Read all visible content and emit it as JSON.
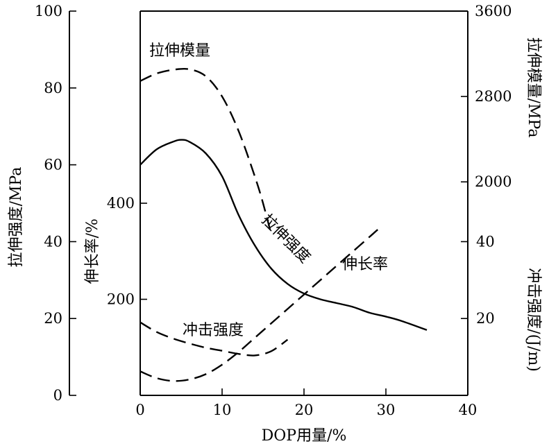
{
  "chart_data": {
    "type": "line",
    "title": "",
    "xlabel": "DOP用量/%",
    "x_ticks": [
      "0",
      "10",
      "20",
      "30",
      "40"
    ],
    "xlim": [
      0,
      40
    ],
    "axes": {
      "tensile_strength": {
        "label": "拉伸强度/MPa",
        "range": [
          0,
          100
        ],
        "ticks": [
          "0",
          "20",
          "40",
          "60",
          "80",
          "100"
        ]
      },
      "elongation": {
        "label": "伸长率/%",
        "range": [
          0,
          800
        ],
        "ticks": [
          "200",
          "400"
        ]
      },
      "tensile_modulus": {
        "label": "拉伸模量/MPa",
        "range": [
          0,
          3600
        ],
        "ticks": [
          "2000",
          "2800",
          "3600"
        ]
      },
      "impact_strength": {
        "label": "冲击强度/(J/m)",
        "range": [
          0,
          100
        ],
        "ticks": [
          "20",
          "40"
        ]
      }
    },
    "series": [
      {
        "name": "拉伸模量",
        "axis": "tensile_modulus",
        "style": "dashed",
        "x": [
          0,
          2,
          4,
          6,
          8,
          10,
          12,
          14,
          15,
          16
        ],
        "y": [
          2945,
          3015,
          3050,
          3055,
          2990,
          2800,
          2480,
          2050,
          1800,
          1510
        ]
      },
      {
        "name": "拉伸强度",
        "axis": "tensile_strength",
        "style": "solid",
        "x": [
          0,
          2,
          4,
          5,
          6,
          8,
          10,
          12,
          14,
          16,
          18,
          20,
          22,
          24,
          26,
          28,
          30,
          32,
          35
        ],
        "y": [
          60,
          64,
          66,
          66.5,
          66,
          63,
          57,
          47,
          39,
          33,
          29,
          26.5,
          25,
          24,
          23,
          21.5,
          20.5,
          19.3,
          17
        ]
      },
      {
        "name": "伸长率",
        "axis": "elongation",
        "style": "dashed",
        "x": [
          0,
          2,
          4,
          6,
          8,
          10,
          12,
          14,
          16,
          18,
          20,
          22,
          24,
          26,
          28,
          29
        ],
        "y": [
          50,
          36,
          30,
          33,
          44,
          64,
          90,
          120,
          150,
          180,
          210,
          240,
          270,
          300,
          330,
          345
        ]
      },
      {
        "name": "冲击强度",
        "axis": "impact_strength",
        "style": "dashed",
        "x": [
          0,
          2,
          4,
          6,
          8,
          10,
          12,
          14,
          16,
          18
        ],
        "y": [
          19,
          16.5,
          14.8,
          13.5,
          12.4,
          11.6,
          10.8,
          10.4,
          11.5,
          14.5
        ]
      }
    ],
    "grid": false,
    "legend": "none"
  }
}
